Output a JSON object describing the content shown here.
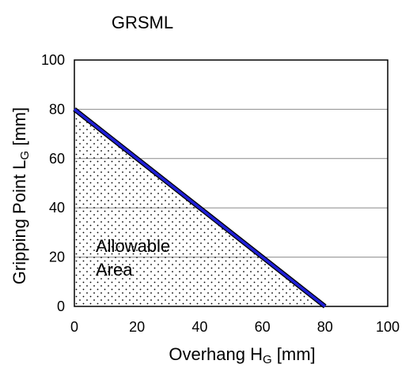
{
  "chart_data": {
    "type": "area",
    "title": "GRSML",
    "xlabel": {
      "main": "Overhang H",
      "sub": "G",
      "unit": " [mm]"
    },
    "ylabel": {
      "main": "Gripping Point L",
      "sub": "G",
      "unit": " [mm]"
    },
    "xlim": [
      0,
      100
    ],
    "ylim": [
      0,
      100
    ],
    "xticks": [
      0,
      20,
      40,
      60,
      80,
      100
    ],
    "yticks": [
      0,
      20,
      40,
      60,
      80,
      100
    ],
    "grid": "horizontal",
    "series": [
      {
        "x": [
          0,
          80
        ],
        "y": [
          80,
          0
        ],
        "color": "#1f1fd6"
      }
    ],
    "region": {
      "points": [
        [
          0,
          0
        ],
        [
          0,
          80
        ],
        [
          80,
          0
        ]
      ],
      "fill": "dotted",
      "label_lines": [
        "Allowable",
        "Area"
      ]
    }
  }
}
